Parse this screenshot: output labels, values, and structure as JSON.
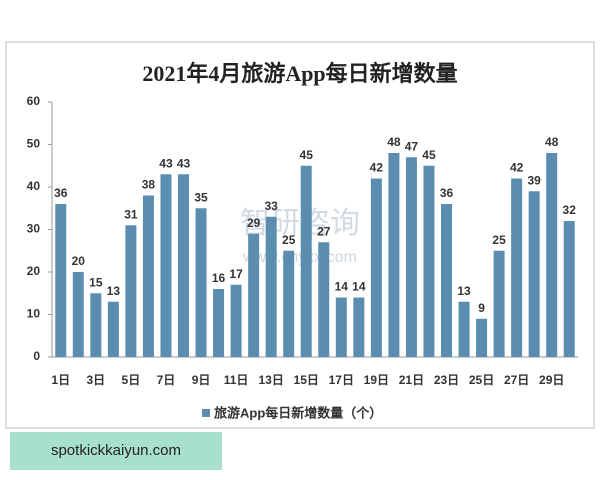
{
  "chart_data": {
    "type": "bar",
    "title": "2021年4月旅游App每日新增数量",
    "categories": [
      "1日",
      null,
      "3日",
      null,
      "5日",
      null,
      "7日",
      null,
      "9日",
      null,
      "11日",
      null,
      "13日",
      null,
      "15日",
      null,
      "17日",
      null,
      "19日",
      null,
      "21日",
      null,
      "23日",
      null,
      "25日",
      null,
      "27日",
      null,
      "29日",
      null
    ],
    "series": [
      {
        "name": "旅游App每日新增数量（个）",
        "color": "#5b8db0",
        "values": [
          36,
          20,
          15,
          13,
          31,
          38,
          43,
          43,
          35,
          16,
          17,
          29,
          33,
          25,
          45,
          27,
          14,
          14,
          42,
          48,
          47,
          45,
          36,
          13,
          9,
          25,
          42,
          39,
          48,
          32
        ]
      }
    ],
    "ylim": [
      0,
      60
    ],
    "yticks": [
      0,
      10,
      20,
      30,
      40,
      50,
      60
    ],
    "grid": false,
    "legend": "bottom",
    "watermark": "智研咨询",
    "watermark_url": "www.chyxx.com"
  },
  "footer_banner": "spotkickkaiyun.com"
}
